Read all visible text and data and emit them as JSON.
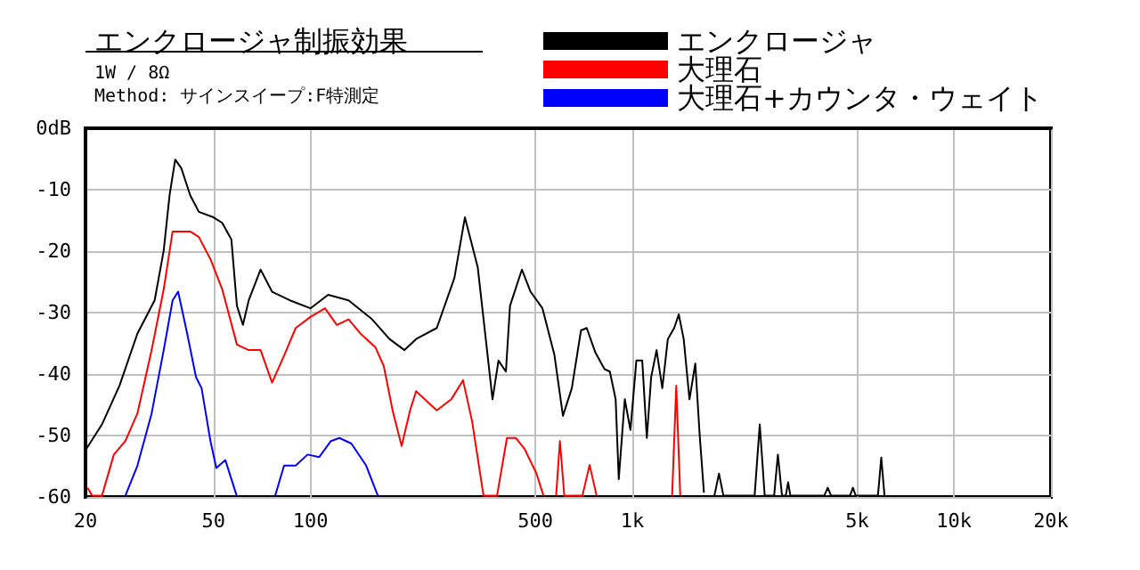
{
  "chart_data": {
    "type": "line",
    "title": "エンクロージャ制振効果",
    "subtitle": "1W / 8Ω\nMethod: サインスイープ:F特測定",
    "log": "x",
    "xlim": [
      20,
      20000
    ],
    "xticks": [
      20,
      50,
      100,
      500,
      {
        "value": 1000,
        "label": "1k"
      },
      {
        "value": 5000,
        "label": "5k"
      },
      {
        "value": 10000,
        "label": "10k"
      },
      {
        "value": 20000,
        "label": "20k"
      }
    ],
    "ylim": [
      -60,
      0
    ],
    "yticks": [
      {
        "value": 0,
        "label": "0dB"
      },
      -10,
      -20,
      -30,
      -40,
      -50,
      -60
    ],
    "grid": true,
    "legend": "top right",
    "marker": "none",
    "line_style": "solid",
    "series": [
      {
        "name": "エンクロージャ",
        "color": "#000000",
        "x": [
          20,
          22.5,
          25.5,
          29,
          32.8,
          35,
          36.5,
          38,
          39.7,
          42.3,
          45,
          50,
          53.2,
          56.8,
          59.1,
          61.7,
          64.3,
          70,
          76,
          86.3,
          100,
          113.5,
          131.4,
          155.5,
          176,
          196,
          213,
          247,
          280,
          302,
          331,
          368,
          384,
          405,
          417,
          454,
          483,
          526,
          573,
          609,
          649,
          693,
          722,
          768,
          820,
          852,
          888,
          908,
          948,
          987,
          1030,
          1074,
          1110,
          1145,
          1190,
          1240,
          1290,
          1350,
          1395,
          1445,
          1506,
          1570,
          1620,
          1670,
          1720,
          1800,
          1860,
          1920,
          2400,
          2490,
          2580,
          2760,
          2835,
          2920,
          3000,
          3050,
          3100,
          3950,
          4050,
          4150,
          4750,
          4850,
          4950,
          5800,
          5940,
          6080
        ],
        "values": [
          -52.4,
          -48.2,
          -41.9,
          -33.4,
          -28,
          -19.9,
          -10.9,
          -5.1,
          -6.5,
          -10.9,
          -13.6,
          -14.5,
          -15.4,
          -18.1,
          -28.9,
          -32,
          -28,
          -23,
          -26.6,
          -28,
          -29.3,
          -27.1,
          -28,
          -31.1,
          -34.3,
          -36.1,
          -34.3,
          -32.5,
          -24.4,
          -14.5,
          -22.6,
          -44.1,
          -37.8,
          -39.6,
          -28.9,
          -23,
          -26.6,
          -29.3,
          -36.9,
          -46.8,
          -42.3,
          -32.9,
          -32.5,
          -36.5,
          -39.2,
          -39.6,
          -44.1,
          -57.1,
          -44.1,
          -49.1,
          -37.8,
          -37.8,
          -50.4,
          -40.5,
          -36.1,
          -42.3,
          -34.3,
          -32.5,
          -30.3,
          -34.3,
          -44.1,
          -38.3,
          -49.9,
          -59.3,
          null,
          -59.8,
          -56.2,
          -59.8,
          -59.8,
          -48.2,
          -59.8,
          -59.8,
          -53.1,
          -59.8,
          -59.8,
          -57.6,
          -59.8,
          -59.8,
          -58.5,
          -59.8,
          -59.8,
          -58.5,
          -59.8,
          -59.8,
          -53.6,
          -59.8
        ]
      },
      {
        "name": "大理石",
        "color": "#ff0000",
        "x": [
          20.3,
          21,
          22.5,
          24.5,
          26.6,
          29,
          32.1,
          35,
          37.3,
          39.7,
          42.3,
          45,
          48.9,
          53.2,
          59.1,
          64.3,
          70,
          76,
          82.8,
          90,
          100,
          111,
          120.8,
          131.4,
          143,
          159,
          169,
          180,
          192,
          204,
          213,
          232,
          247,
          274,
          298,
          318,
          345,
          380,
          408,
          435,
          463,
          504,
          530,
          560,
          580,
          596,
          615,
          700,
          737,
          775,
          800,
          1330,
          1370,
          1410
        ],
        "values": [
          -58.5,
          -59.8,
          -59.8,
          -53.1,
          -50.9,
          -46.4,
          -36.1,
          -26.2,
          -16.8,
          -16.8,
          -16.8,
          -17.7,
          -21.3,
          -26.2,
          -35.2,
          -36.1,
          -36.1,
          -41.4,
          -37,
          -32.5,
          -30.7,
          -29.3,
          -32,
          -31.1,
          -33.4,
          -35.6,
          -38.7,
          -45.9,
          -51.7,
          -45.9,
          -42.8,
          -44.6,
          -45.9,
          -44.1,
          -41,
          -47.7,
          -59.8,
          -59.8,
          -50.4,
          -50.4,
          -52.2,
          -56.2,
          -59.8,
          null,
          -59.8,
          -50.9,
          -59.8,
          -59.8,
          -54.8,
          -59.8,
          null,
          -59.8,
          -41.9,
          -59.8
        ]
      },
      {
        "name": "大理石+カウンタ・ウェイト",
        "color": "#0000ff",
        "x": [
          26.6,
          29,
          32.1,
          35,
          37.3,
          38.8,
          41.4,
          44.1,
          45.9,
          48.9,
          51,
          54.4,
          59,
          65,
          77.7,
          82.8,
          90,
          98,
          106.5,
          115.8,
          123,
          134,
          149,
          162
        ],
        "values": [
          -59.8,
          -54.9,
          -46.4,
          -36.1,
          -28,
          -26.6,
          -33.4,
          -40.5,
          -42.3,
          -50.9,
          -55.3,
          -54,
          -59.8,
          null,
          -59.8,
          -54.9,
          -54.9,
          -53.1,
          -53.5,
          -50.9,
          -50.4,
          -51.3,
          -54.9,
          -59.8
        ]
      }
    ]
  }
}
